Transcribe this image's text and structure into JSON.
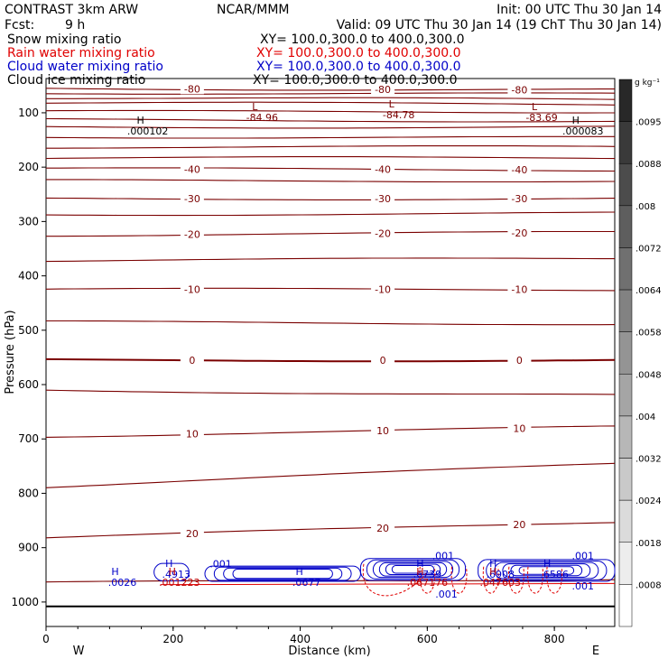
{
  "header": {
    "title": "CONTRAST  3km ARW",
    "org": "NCAR/MMM",
    "init": "Init: 00 UTC Thu 30 Jan 14",
    "fcst_label": "Fcst:",
    "fcst_value": "9 h",
    "valid": "Valid: 09 UTC Thu 30 Jan 14 (19 ChT Thu 30 Jan 14)",
    "fields": [
      {
        "name": "Snow mixing ratio",
        "xy": "XY= 100.0,300.0 to 400.0,300.0",
        "color": "#000000"
      },
      {
        "name": "Rain water mixing ratio",
        "xy": "XY= 100.0,300.0 to 400.0,300.0",
        "color": "#e00000"
      },
      {
        "name": "Cloud water mixing ratio",
        "xy": "XY= 100.0,300.0 to 400.0,300.0",
        "color": "#0000c8"
      },
      {
        "name": "Cloud ice mixing ratio",
        "xy": "XY= 100.0,300.0 to 400.0,300.0",
        "color": "#000000"
      }
    ]
  },
  "chart_data": {
    "type": "contour",
    "xlabel": "Distance (km)",
    "ylabel": "Pressure (hPa)",
    "xlim": [
      0,
      895
    ],
    "ylim": [
      1045,
      37
    ],
    "x_ticks": [
      0,
      200,
      400,
      600,
      800
    ],
    "y_ticks": [
      100,
      200,
      300,
      400,
      500,
      600,
      700,
      800,
      900,
      1000
    ],
    "x_ends": {
      "left": "W",
      "right": "E"
    },
    "colorbar": {
      "unit": "g kg⁻¹",
      "ticks": [
        ".0095",
        ".0088",
        ".008",
        ".0072",
        ".0064",
        ".0058",
        ".0048",
        ".004",
        ".0032",
        ".0024",
        ".0018",
        ".0008"
      ]
    },
    "temperature_isotherms": [
      {
        "value": -80,
        "label": "-80",
        "p_left": 55,
        "p_right": 58
      },
      {
        "value": -80,
        "label": "",
        "p_left": 63,
        "p_right": 66
      },
      {
        "value": -80,
        "label": "",
        "p_left": 72,
        "p_right": 76
      },
      {
        "value": -80,
        "label": "",
        "p_left": 82,
        "p_right": 84
      },
      {
        "value": -70,
        "label": "",
        "p_left": 98,
        "p_right": 98
      },
      {
        "value": -60,
        "label": "",
        "p_left": 113,
        "p_right": 115
      },
      {
        "value": -60,
        "label": "",
        "p_left": 126,
        "p_right": 126
      },
      {
        "value": -50,
        "label": "",
        "p_left": 144,
        "p_right": 146
      },
      {
        "value": -50,
        "label": "",
        "p_left": 163,
        "p_right": 163
      },
      {
        "value": -50,
        "label": "",
        "p_left": 183,
        "p_right": 183
      },
      {
        "value": -40,
        "label": "-40",
        "p_left": 203,
        "p_right": 205
      },
      {
        "value": -35,
        "label": "",
        "p_left": 225,
        "p_right": 225
      },
      {
        "value": -30,
        "label": "-30",
        "p_left": 258,
        "p_right": 258
      },
      {
        "value": -25,
        "label": "",
        "p_left": 287,
        "p_right": 285
      },
      {
        "value": -20,
        "label": "-20",
        "p_left": 325,
        "p_right": 320
      },
      {
        "value": -15,
        "label": "",
        "p_left": 372,
        "p_right": 368
      },
      {
        "value": -10,
        "label": "-10",
        "p_left": 425,
        "p_right": 425
      },
      {
        "value": -5,
        "label": "",
        "p_left": 485,
        "p_right": 488
      },
      {
        "value": 0,
        "label": "0",
        "p_left": 555,
        "p_right": 555
      },
      {
        "value": 5,
        "label": "",
        "p_left": 610,
        "p_right": 620
      },
      {
        "value": 10,
        "label": "10",
        "p_left": 695,
        "p_right": 678
      },
      {
        "value": 15,
        "label": "",
        "p_left": 788,
        "p_right": 745
      },
      {
        "value": 20,
        "label": "20",
        "p_left": 882,
        "p_right": 852
      },
      {
        "value": 25,
        "label": "",
        "p_left": 965,
        "p_right": 957
      }
    ],
    "extrema": [
      {
        "type": "L",
        "value": "-84.96",
        "x_km": 340,
        "p": 105
      },
      {
        "type": "L",
        "value": "-84.78",
        "x_km": 555,
        "p": 100
      },
      {
        "type": "L",
        "value": "-83.69",
        "x_km": 780,
        "p": 105
      },
      {
        "type": "H",
        "value": ".000102",
        "x_km": 160,
        "p": 130
      },
      {
        "type": "H",
        "value": ".000083",
        "x_km": 845,
        "p": 130
      },
      {
        "type": "H",
        "value": ".0026",
        "x_km": 120,
        "p": 960
      },
      {
        "type": "H",
        "value": ".4913",
        "x_km": 205,
        "p": 945
      },
      {
        "type": "H",
        "value": ".001223",
        "x_km": 210,
        "p": 960
      },
      {
        "type": "H",
        "value": ".0677",
        "x_km": 410,
        "p": 960
      },
      {
        "type": "H",
        "value": ".6739",
        "x_km": 600,
        "p": 945
      },
      {
        "type": "H",
        "value": ".067176",
        "x_km": 600,
        "p": 960
      },
      {
        "type": "H",
        "value": ".6908",
        "x_km": 715,
        "p": 945
      },
      {
        "type": "H",
        "value": ".047603",
        "x_km": 715,
        "p": 960
      },
      {
        "type": "H",
        "value": ".6586",
        "x_km": 800,
        "p": 945
      }
    ],
    "cloud_water_labels": [
      {
        "value": ".001",
        "x_km": 275,
        "p": 930
      },
      {
        "value": ".001",
        "x_km": 625,
        "p": 915
      },
      {
        "value": ".001",
        "x_km": 630,
        "p": 985
      },
      {
        "value": ".001",
        "x_km": 845,
        "p": 915
      },
      {
        "value": ".001",
        "x_km": 845,
        "p": 970
      }
    ],
    "surface_p": 1008
  }
}
